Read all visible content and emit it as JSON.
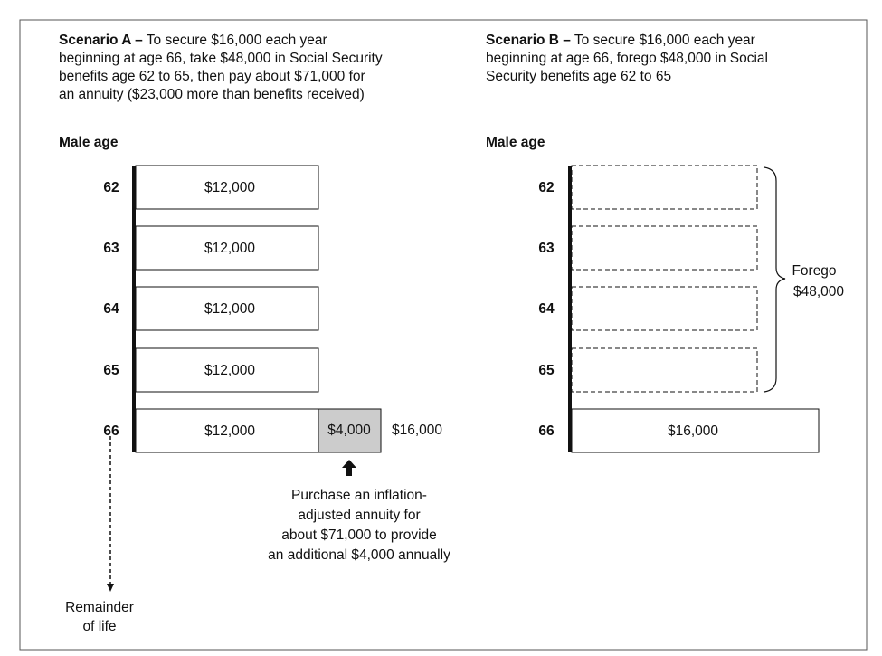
{
  "scenario_a": {
    "heading": "Scenario A –",
    "description_lines": [
      " To secure $16,000 each year",
      "beginning at age 66, take $48,000 in Social Security",
      "benefits age 62 to 65, then pay about $71,000 for",
      "an annuity ($23,000 more than benefits received)"
    ],
    "axis_label": "Male age",
    "rows": [
      {
        "age": "62",
        "amount": "$12,000"
      },
      {
        "age": "63",
        "amount": "$12,000"
      },
      {
        "age": "64",
        "amount": "$12,000"
      },
      {
        "age": "65",
        "amount": "$12,000"
      },
      {
        "age": "66",
        "amount": "$12,000"
      }
    ],
    "annuity_amount": "$4,000",
    "total": "$16,000",
    "annuity_note_lines": [
      "Purchase an inflation-",
      "adjusted annuity for",
      "about $71,000 to provide",
      "an additional $4,000 annually"
    ],
    "remainder_lines": [
      "Remainder",
      "of life"
    ]
  },
  "scenario_b": {
    "heading": "Scenario B –",
    "description_lines": [
      " To secure $16,000 each year",
      "beginning at age 66, forego $48,000 in Social",
      "Security benefits age 62 to 65"
    ],
    "axis_label": "Male age",
    "rows": [
      {
        "age": "62"
      },
      {
        "age": "63"
      },
      {
        "age": "64"
      },
      {
        "age": "65"
      },
      {
        "age": "66",
        "amount": "$16,000"
      }
    ],
    "forego_lines": [
      "Forego",
      "$48,000"
    ]
  }
}
